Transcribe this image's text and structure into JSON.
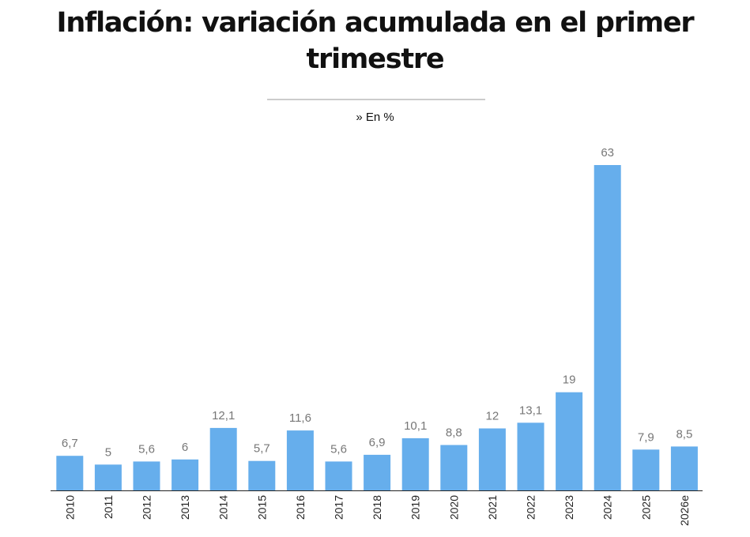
{
  "chart_data": {
    "type": "bar",
    "title": "Inflación: variación acumulada en el primer trimestre",
    "subtitle": "» En %",
    "categories": [
      "2010",
      "2011",
      "2012",
      "2013",
      "2014",
      "2015",
      "2016",
      "2017",
      "2018",
      "2019",
      "2020",
      "2021",
      "2022",
      "2023",
      "2024",
      "2025",
      "2026e"
    ],
    "values": [
      6.7,
      5,
      5.6,
      6,
      12.1,
      5.7,
      11.6,
      5.6,
      6.9,
      10.1,
      8.8,
      12,
      13.1,
      19,
      63,
      7.9,
      8.5
    ],
    "value_labels": [
      "6,7",
      "5",
      "5,6",
      "6",
      "12,1",
      "5,7",
      "11,6",
      "5,6",
      "6,9",
      "10,1",
      "8,8",
      "12",
      "13,1",
      "19",
      "63",
      "7,9",
      "8,5"
    ],
    "xlabel": "",
    "ylabel": "",
    "ylim": [
      0,
      63
    ],
    "grid": false,
    "bar_color": "#66aeec",
    "label_color": "#777777",
    "axis_color": "#222222"
  }
}
